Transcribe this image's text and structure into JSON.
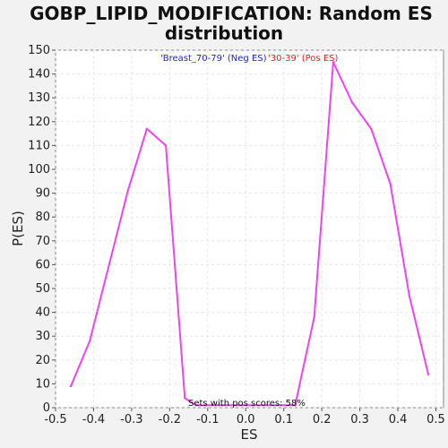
{
  "chart_data": {
    "type": "line",
    "title": [
      "GOBP_LIPID_MODIFICATION: Random ES",
      "distribution"
    ],
    "xlabel": "ES",
    "ylabel": "P(ES)",
    "xlim": [
      -0.5,
      0.52
    ],
    "ylim": [
      0,
      150
    ],
    "xticks": [
      "-0.5",
      "-0.4",
      "-0.3",
      "-0.2",
      "-0.1",
      "0.0",
      "0.1",
      "0.2",
      "0.3",
      "0.4",
      "0.5"
    ],
    "yticks": [
      "0",
      "10",
      "20",
      "30",
      "40",
      "50",
      "60",
      "70",
      "80",
      "90",
      "100",
      "110",
      "120",
      "130",
      "140",
      "150"
    ],
    "grid": true,
    "legend": {
      "placement": "top-center",
      "entries": [
        {
          "label": "'Breast_70-79' (Neg ES)",
          "color": "#2222cc"
        },
        {
          "label": "'30-39' (Pos ES)",
          "color": "#dd2222"
        }
      ]
    },
    "annotation": "Sets with pos scores: 58%",
    "series": [
      {
        "color": "#ee44ee",
        "points": [
          [
            -0.46,
            9
          ],
          [
            -0.41,
            28
          ],
          [
            -0.31,
            91
          ],
          [
            -0.26,
            117
          ],
          [
            -0.21,
            110
          ],
          [
            -0.16,
            4
          ],
          [
            -0.13,
            1
          ],
          [
            0.13,
            1
          ],
          [
            0.18,
            38
          ],
          [
            0.23,
            145
          ],
          [
            0.28,
            128
          ],
          [
            0.33,
            117
          ],
          [
            0.38,
            94
          ],
          [
            0.43,
            47
          ],
          [
            0.48,
            14
          ]
        ]
      }
    ]
  }
}
